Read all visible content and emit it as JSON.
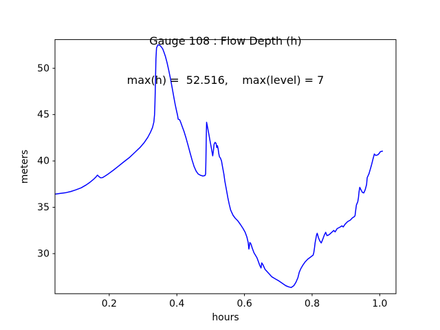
{
  "chart_data": {
    "type": "line",
    "title": "Gauge 108 : Flow Depth (h)",
    "subtitle": "max(h) =  52.516,    max(level) = 7",
    "xlabel": "hours",
    "ylabel": "meters",
    "xlim": [
      0.0396,
      1.0481
    ],
    "ylim": [
      25.68,
      53.09
    ],
    "grid": false,
    "legend_position": "none",
    "background_color": "#ffffff",
    "spine_color": "#000000",
    "line_color": "#0000ff",
    "xticks": [
      {
        "v": 0.2,
        "label": "0.2"
      },
      {
        "v": 0.4,
        "label": "0.4"
      },
      {
        "v": 0.6,
        "label": "0.6"
      },
      {
        "v": 0.8,
        "label": "0.8"
      },
      {
        "v": 1.0,
        "label": "1.0"
      }
    ],
    "yticks": [
      {
        "v": 30,
        "label": "30"
      },
      {
        "v": 35,
        "label": "35"
      },
      {
        "v": 40,
        "label": "40"
      },
      {
        "v": 45,
        "label": "45"
      },
      {
        "v": 50,
        "label": "50"
      }
    ],
    "series": [
      {
        "name": "flow-depth-h",
        "color": "#0000ff",
        "points": [
          [
            0.04,
            36.42
          ],
          [
            0.056,
            36.5
          ],
          [
            0.072,
            36.58
          ],
          [
            0.086,
            36.7
          ],
          [
            0.101,
            36.88
          ],
          [
            0.117,
            37.1
          ],
          [
            0.131,
            37.4
          ],
          [
            0.143,
            37.7
          ],
          [
            0.153,
            38.0
          ],
          [
            0.161,
            38.28
          ],
          [
            0.165,
            38.47
          ],
          [
            0.169,
            38.33
          ],
          [
            0.174,
            38.18
          ],
          [
            0.18,
            38.2
          ],
          [
            0.188,
            38.38
          ],
          [
            0.198,
            38.62
          ],
          [
            0.212,
            39.0
          ],
          [
            0.226,
            39.4
          ],
          [
            0.243,
            39.9
          ],
          [
            0.259,
            40.35
          ],
          [
            0.275,
            40.9
          ],
          [
            0.291,
            41.45
          ],
          [
            0.304,
            42.0
          ],
          [
            0.314,
            42.55
          ],
          [
            0.322,
            43.1
          ],
          [
            0.328,
            43.6
          ],
          [
            0.332,
            44.2
          ],
          [
            0.334,
            45.0
          ],
          [
            0.335,
            46.0
          ],
          [
            0.336,
            47.5
          ],
          [
            0.337,
            49.2
          ],
          [
            0.338,
            51.0
          ],
          [
            0.34,
            52.2
          ],
          [
            0.344,
            52.516
          ],
          [
            0.348,
            52.5
          ],
          [
            0.352,
            52.4
          ],
          [
            0.358,
            52.1
          ],
          [
            0.362,
            51.7
          ],
          [
            0.366,
            51.3
          ],
          [
            0.371,
            50.6
          ],
          [
            0.376,
            49.8
          ],
          [
            0.381,
            48.9
          ],
          [
            0.386,
            47.9
          ],
          [
            0.391,
            46.9
          ],
          [
            0.395,
            46.1
          ],
          [
            0.399,
            45.4
          ],
          [
            0.402,
            44.95
          ],
          [
            0.404,
            44.5
          ],
          [
            0.408,
            44.45
          ],
          [
            0.411,
            44.2
          ],
          [
            0.415,
            43.8
          ],
          [
            0.421,
            43.2
          ],
          [
            0.427,
            42.5
          ],
          [
            0.433,
            41.7
          ],
          [
            0.439,
            40.9
          ],
          [
            0.445,
            40.1
          ],
          [
            0.451,
            39.4
          ],
          [
            0.457,
            38.9
          ],
          [
            0.463,
            38.6
          ],
          [
            0.47,
            38.45
          ],
          [
            0.477,
            38.38
          ],
          [
            0.483,
            38.42
          ],
          [
            0.485,
            38.6
          ],
          [
            0.486,
            40.0
          ],
          [
            0.487,
            42.5
          ],
          [
            0.488,
            44.17
          ],
          [
            0.491,
            43.6
          ],
          [
            0.495,
            42.8
          ],
          [
            0.499,
            42.0
          ],
          [
            0.503,
            41.2
          ],
          [
            0.506,
            40.55
          ],
          [
            0.508,
            41.1
          ],
          [
            0.51,
            41.8
          ],
          [
            0.513,
            42.0
          ],
          [
            0.516,
            41.9
          ],
          [
            0.518,
            41.45
          ],
          [
            0.52,
            41.65
          ],
          [
            0.522,
            41.3
          ],
          [
            0.524,
            40.8
          ],
          [
            0.526,
            40.45
          ],
          [
            0.529,
            40.3
          ],
          [
            0.532,
            40.0
          ],
          [
            0.535,
            39.4
          ],
          [
            0.539,
            38.6
          ],
          [
            0.542,
            37.8
          ],
          [
            0.546,
            37.0
          ],
          [
            0.551,
            36.0
          ],
          [
            0.555,
            35.3
          ],
          [
            0.559,
            34.7
          ],
          [
            0.566,
            34.15
          ],
          [
            0.572,
            33.85
          ],
          [
            0.58,
            33.55
          ],
          [
            0.588,
            33.15
          ],
          [
            0.596,
            32.7
          ],
          [
            0.602,
            32.3
          ],
          [
            0.607,
            31.8
          ],
          [
            0.611,
            31.2
          ],
          [
            0.613,
            30.5
          ],
          [
            0.616,
            31.2
          ],
          [
            0.619,
            31.05
          ],
          [
            0.623,
            30.6
          ],
          [
            0.628,
            30.1
          ],
          [
            0.633,
            29.8
          ],
          [
            0.637,
            29.55
          ],
          [
            0.641,
            29.15
          ],
          [
            0.645,
            28.75
          ],
          [
            0.649,
            28.45
          ],
          [
            0.651,
            29.0
          ],
          [
            0.654,
            28.85
          ],
          [
            0.661,
            28.3
          ],
          [
            0.671,
            27.9
          ],
          [
            0.681,
            27.5
          ],
          [
            0.691,
            27.28
          ],
          [
            0.702,
            27.05
          ],
          [
            0.712,
            26.8
          ],
          [
            0.722,
            26.55
          ],
          [
            0.73,
            26.42
          ],
          [
            0.738,
            26.35
          ],
          [
            0.746,
            26.55
          ],
          [
            0.752,
            26.9
          ],
          [
            0.758,
            27.4
          ],
          [
            0.762,
            28.0
          ],
          [
            0.767,
            28.4
          ],
          [
            0.773,
            28.78
          ],
          [
            0.779,
            29.1
          ],
          [
            0.787,
            29.4
          ],
          [
            0.795,
            29.62
          ],
          [
            0.803,
            29.85
          ],
          [
            0.805,
            30.1
          ],
          [
            0.807,
            30.6
          ],
          [
            0.809,
            31.2
          ],
          [
            0.813,
            32.0
          ],
          [
            0.815,
            32.2
          ],
          [
            0.819,
            31.7
          ],
          [
            0.823,
            31.35
          ],
          [
            0.827,
            31.15
          ],
          [
            0.831,
            31.5
          ],
          [
            0.836,
            32.0
          ],
          [
            0.84,
            32.3
          ],
          [
            0.844,
            31.95
          ],
          [
            0.848,
            32.0
          ],
          [
            0.852,
            32.1
          ],
          [
            0.858,
            32.3
          ],
          [
            0.864,
            32.5
          ],
          [
            0.868,
            32.35
          ],
          [
            0.874,
            32.7
          ],
          [
            0.882,
            32.85
          ],
          [
            0.888,
            33.0
          ],
          [
            0.892,
            32.88
          ],
          [
            0.898,
            33.2
          ],
          [
            0.905,
            33.45
          ],
          [
            0.913,
            33.62
          ],
          [
            0.919,
            33.85
          ],
          [
            0.925,
            34.0
          ],
          [
            0.927,
            34.1
          ],
          [
            0.929,
            34.7
          ],
          [
            0.931,
            35.25
          ],
          [
            0.935,
            35.6
          ],
          [
            0.937,
            36.05
          ],
          [
            0.939,
            36.7
          ],
          [
            0.941,
            37.15
          ],
          [
            0.945,
            36.85
          ],
          [
            0.949,
            36.6
          ],
          [
            0.953,
            36.55
          ],
          [
            0.957,
            36.9
          ],
          [
            0.961,
            37.45
          ],
          [
            0.963,
            38.2
          ],
          [
            0.968,
            38.6
          ],
          [
            0.972,
            39.1
          ],
          [
            0.976,
            39.6
          ],
          [
            0.98,
            40.2
          ],
          [
            0.984,
            40.75
          ],
          [
            0.988,
            40.6
          ],
          [
            0.994,
            40.65
          ],
          [
            0.998,
            40.8
          ],
          [
            1.002,
            41.0
          ],
          [
            1.008,
            41.05
          ]
        ]
      }
    ]
  }
}
